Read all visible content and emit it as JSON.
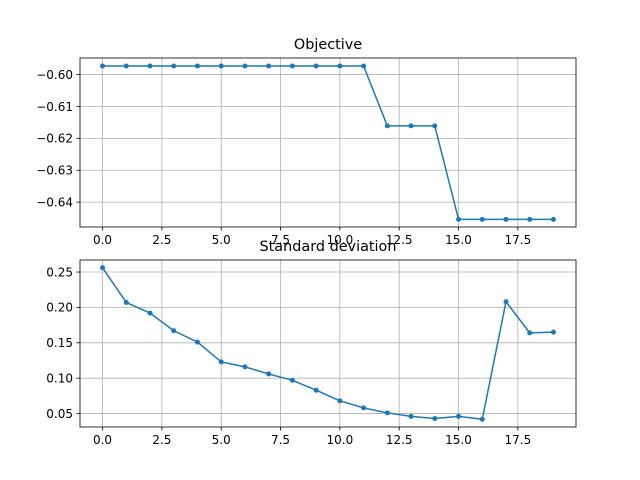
{
  "chart_data": [
    {
      "type": "line",
      "title": "Objective",
      "xlabel": "",
      "ylabel": "",
      "grid": true,
      "color": "#1f77b4",
      "marker": "circle",
      "x": [
        0,
        1,
        2,
        3,
        4,
        5,
        6,
        7,
        8,
        9,
        10,
        11,
        12,
        13,
        14,
        15,
        16,
        17,
        18,
        19
      ],
      "y": [
        -0.5973,
        -0.5973,
        -0.5973,
        -0.5973,
        -0.5973,
        -0.5973,
        -0.5973,
        -0.5973,
        -0.5973,
        -0.5973,
        -0.5973,
        -0.5973,
        -0.6161,
        -0.6161,
        -0.6161,
        -0.6454,
        -0.6454,
        -0.6454,
        -0.6454,
        -0.6454
      ],
      "xlim": [
        -0.95,
        19.95
      ],
      "ylim": [
        -0.6478,
        -0.5948
      ],
      "xticks": [
        0.0,
        2.5,
        5.0,
        7.5,
        10.0,
        12.5,
        15.0,
        17.5
      ],
      "xtick_labels": [
        "0.0",
        "2.5",
        "5.0",
        "7.5",
        "10.0",
        "12.5",
        "15.0",
        "17.5"
      ],
      "yticks": [
        -0.6,
        -0.61,
        -0.62,
        -0.63,
        -0.64
      ],
      "ytick_labels": [
        "−0.60",
        "−0.61",
        "−0.62",
        "−0.63",
        "−0.64"
      ]
    },
    {
      "type": "line",
      "title": "Standard deviation",
      "xlabel": "",
      "ylabel": "",
      "grid": true,
      "color": "#1f77b4",
      "marker": "circle",
      "x": [
        0,
        1,
        2,
        3,
        4,
        5,
        6,
        7,
        8,
        9,
        10,
        11,
        12,
        13,
        14,
        15,
        16,
        17,
        18,
        19
      ],
      "y": [
        0.256,
        0.207,
        0.192,
        0.167,
        0.151,
        0.123,
        0.116,
        0.106,
        0.097,
        0.083,
        0.068,
        0.058,
        0.051,
        0.046,
        0.043,
        0.046,
        0.042,
        0.208,
        0.164,
        0.165
      ],
      "xlim": [
        -0.95,
        19.95
      ],
      "ylim": [
        0.031,
        0.267
      ],
      "xticks": [
        0.0,
        2.5,
        5.0,
        7.5,
        10.0,
        12.5,
        15.0,
        17.5
      ],
      "xtick_labels": [
        "0.0",
        "2.5",
        "5.0",
        "7.5",
        "10.0",
        "12.5",
        "15.0",
        "17.5"
      ],
      "yticks": [
        0.05,
        0.1,
        0.15,
        0.2,
        0.25
      ],
      "ytick_labels": [
        "0.05",
        "0.10",
        "0.15",
        "0.20",
        "0.25"
      ]
    }
  ]
}
